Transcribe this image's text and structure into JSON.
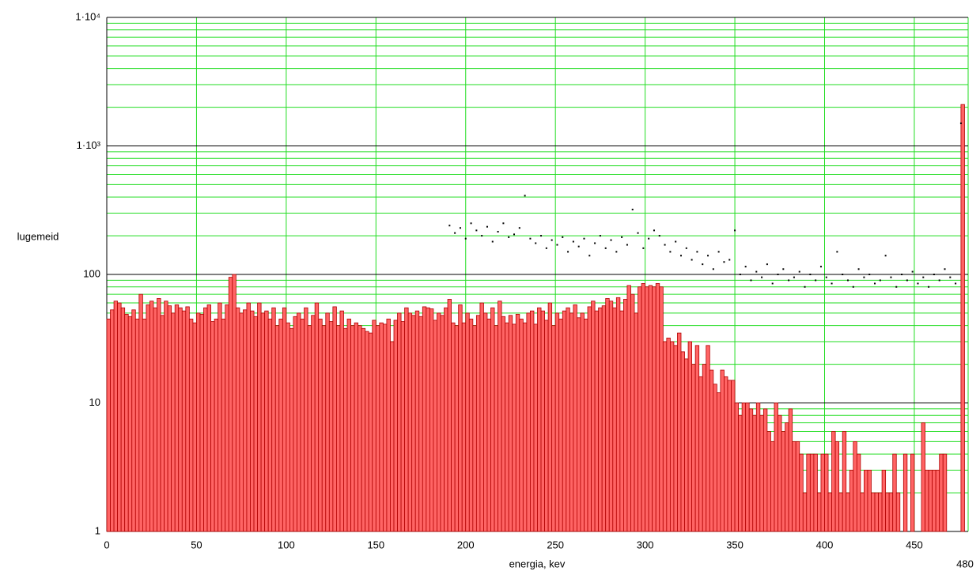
{
  "chart_data": {
    "type": "histogram",
    "xlabel": "energia, kev",
    "ylabel": "lugemeid",
    "color": "#ff6464",
    "edge_color": "#b00000",
    "log_y": true,
    "grid": true,
    "grid_color": "#22dd22",
    "major_grid_color": "#000000",
    "xlim": [
      0,
      480
    ],
    "ylim": [
      1,
      10000
    ],
    "xticks": [
      0,
      50,
      100,
      150,
      200,
      250,
      300,
      350,
      400,
      450,
      480
    ],
    "yticks": [
      1,
      10,
      100,
      {
        "value": 1000,
        "label": "1·10³"
      },
      {
        "value": 10000,
        "label": "1·10⁴"
      }
    ],
    "bins": [
      0,
      2,
      4,
      6,
      8,
      10,
      12,
      14,
      16,
      18,
      20,
      22,
      24,
      26,
      28,
      30,
      32,
      34,
      36,
      38,
      40,
      42,
      44,
      46,
      48,
      50,
      52,
      54,
      56,
      58,
      60,
      62,
      64,
      66,
      68,
      70,
      72,
      74,
      76,
      78,
      80,
      82,
      84,
      86,
      88,
      90,
      92,
      94,
      96,
      98,
      100,
      102,
      104,
      106,
      108,
      110,
      112,
      114,
      116,
      118,
      120,
      122,
      124,
      126,
      128,
      130,
      132,
      134,
      136,
      138,
      140,
      142,
      144,
      146,
      148,
      150,
      152,
      154,
      156,
      158,
      160,
      162,
      164,
      166,
      168,
      170,
      172,
      174,
      176,
      178,
      180,
      182,
      184,
      186,
      188,
      190,
      192,
      194,
      196,
      198,
      200,
      202,
      204,
      206,
      208,
      210,
      212,
      214,
      216,
      218,
      220,
      222,
      224,
      226,
      228,
      230,
      232,
      234,
      236,
      238,
      240,
      242,
      244,
      246,
      248,
      250,
      252,
      254,
      256,
      258,
      260,
      262,
      264,
      266,
      268,
      270,
      272,
      274,
      276,
      278,
      280,
      282,
      284,
      286,
      288,
      290,
      292,
      294,
      296,
      298,
      300,
      302,
      304,
      306,
      308,
      310,
      312,
      314,
      316,
      318,
      320,
      322,
      324,
      326,
      328,
      330,
      332,
      334,
      336,
      338,
      340,
      342,
      344,
      346,
      348,
      350,
      352,
      354,
      356,
      358,
      360,
      362,
      364,
      366,
      368,
      370,
      372,
      374,
      376,
      378,
      380,
      382,
      384,
      386,
      388,
      390,
      392,
      394,
      396,
      398,
      400,
      402,
      404,
      406,
      408,
      410,
      412,
      414,
      416,
      418,
      420,
      422,
      424,
      426,
      428,
      430,
      432,
      434,
      436,
      438,
      440,
      442,
      444,
      446,
      448,
      450,
      452,
      454,
      456,
      458,
      460,
      462,
      464,
      466,
      468,
      470,
      472,
      474,
      476,
      478,
      480
    ],
    "counts": [
      45,
      53,
      62,
      60,
      55,
      49,
      47,
      53,
      45,
      70,
      45,
      58,
      62,
      55,
      65,
      48,
      62,
      57,
      50,
      58,
      55,
      52,
      56,
      45,
      42,
      50,
      49,
      55,
      58,
      43,
      45,
      60,
      45,
      58,
      95,
      100,
      55,
      50,
      53,
      60,
      52,
      47,
      60,
      50,
      52,
      45,
      55,
      40,
      45,
      55,
      42,
      38,
      47,
      50,
      45,
      55,
      40,
      48,
      60,
      45,
      40,
      50,
      43,
      56,
      40,
      52,
      38,
      45,
      40,
      42,
      40,
      38,
      36,
      35,
      44,
      40,
      42,
      41,
      45,
      30,
      44,
      50,
      43,
      55,
      50,
      48,
      52,
      47,
      56,
      55,
      54,
      44,
      50,
      48,
      55,
      64,
      42,
      40,
      58,
      42,
      50,
      45,
      40,
      48,
      60,
      50,
      45,
      55,
      40,
      62,
      47,
      42,
      48,
      41,
      49,
      45,
      42,
      50,
      52,
      41,
      55,
      52,
      44,
      60,
      40,
      50,
      45,
      52,
      55,
      50,
      58,
      46,
      50,
      45,
      56,
      62,
      52,
      55,
      57,
      65,
      62,
      55,
      66,
      52,
      64,
      82,
      70,
      50,
      80,
      85,
      80,
      82,
      80,
      85,
      80,
      30,
      32,
      30,
      28,
      35,
      25,
      22,
      30,
      20,
      28,
      16,
      20,
      28,
      18,
      14,
      12,
      18,
      16,
      15,
      15,
      10,
      8,
      10,
      10,
      9,
      8,
      10,
      8,
      9,
      6,
      5,
      10,
      8,
      6,
      7,
      9,
      5,
      5,
      4,
      2,
      4,
      4,
      4,
      2,
      4,
      4,
      2,
      6,
      5,
      2,
      6,
      2,
      3,
      5,
      4,
      2,
      3,
      3,
      2,
      2,
      2,
      3,
      2,
      2,
      4,
      2,
      0,
      4,
      0,
      4,
      0,
      0,
      7,
      3,
      3,
      3,
      3,
      4,
      4,
      0,
      0,
      0,
      0,
      2100,
      0
    ],
    "scatter": {
      "type": "scatter",
      "color": "#000000",
      "x": [
        191,
        194,
        197,
        200,
        203,
        206,
        209,
        212,
        215,
        218,
        221,
        224,
        227,
        230,
        233,
        236,
        239,
        242,
        245,
        248,
        251,
        254,
        257,
        260,
        263,
        266,
        269,
        272,
        275,
        278,
        281,
        284,
        287,
        290,
        293,
        296,
        299,
        302,
        305,
        308,
        311,
        314,
        317,
        320,
        323,
        326,
        329,
        332,
        335,
        338,
        341,
        344,
        347,
        350,
        353,
        356,
        359,
        362,
        365,
        368,
        371,
        374,
        377,
        380,
        383,
        386,
        389,
        392,
        395,
        398,
        401,
        404,
        407,
        410,
        413,
        416,
        419,
        422,
        425,
        428,
        431,
        434,
        437,
        440,
        443,
        446,
        449,
        452,
        455,
        458,
        461,
        464,
        467,
        470,
        473,
        476
      ],
      "y": [
        240,
        210,
        230,
        190,
        250,
        220,
        200,
        235,
        180,
        215,
        250,
        195,
        205,
        230,
        410,
        190,
        175,
        200,
        160,
        185,
        170,
        195,
        150,
        180,
        165,
        190,
        140,
        175,
        200,
        160,
        185,
        150,
        195,
        170,
        320,
        210,
        160,
        190,
        220,
        200,
        170,
        150,
        180,
        140,
        160,
        130,
        150,
        120,
        140,
        110,
        150,
        125,
        130,
        220,
        100,
        115,
        90,
        105,
        95,
        120,
        85,
        100,
        110,
        90,
        95,
        105,
        80,
        100,
        90,
        115,
        95,
        85,
        150,
        100,
        90,
        80,
        110,
        95,
        100,
        85,
        90,
        140,
        95,
        80,
        100,
        90,
        105,
        85,
        95,
        80,
        100,
        90,
        110,
        95,
        85,
        1500
      ]
    }
  }
}
